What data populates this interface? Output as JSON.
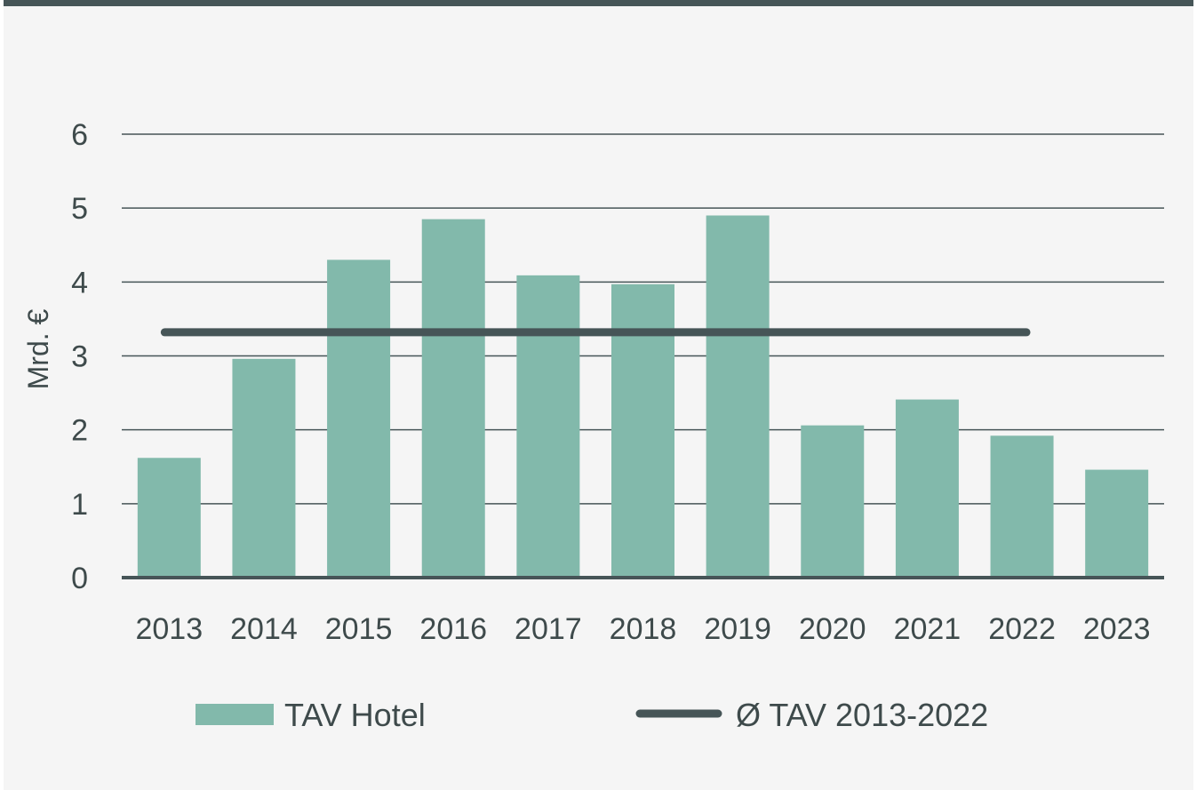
{
  "colors": {
    "bar": "#82b9ab",
    "avg_line": "#465557",
    "grid": "#465557",
    "text": "#3e4a4b",
    "background": "#f5f5f5",
    "top_bar": "#465557"
  },
  "chart_data": {
    "type": "bar",
    "title": "",
    "xlabel": "",
    "ylabel": "Mrd. €",
    "ylim": [
      0,
      6
    ],
    "yticks": [
      "0",
      "1",
      "2",
      "3",
      "4",
      "5",
      "6"
    ],
    "categories": [
      "2013",
      "2014",
      "2015",
      "2016",
      "2017",
      "2018",
      "2019",
      "2020",
      "2021",
      "2022",
      "2023"
    ],
    "series": [
      {
        "name": "TAV Hotel",
        "type": "bar",
        "values": [
          1.62,
          2.96,
          4.3,
          4.85,
          4.09,
          3.97,
          4.9,
          2.06,
          2.41,
          1.92,
          1.46
        ]
      },
      {
        "name": "Ø TAV 2013-2022",
        "type": "line",
        "value": 3.32,
        "x_range": [
          "2013",
          "2022"
        ]
      }
    ],
    "grid": true,
    "legend_position": "bottom"
  }
}
